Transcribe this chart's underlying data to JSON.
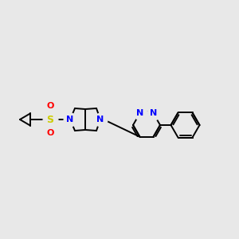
{
  "background_color": "#e8e8e8",
  "bond_color": "#000000",
  "bond_width": 1.4,
  "atom_colors": {
    "N": "#0000ff",
    "S": "#cccc00",
    "O": "#ff0000",
    "C": "#000000"
  },
  "figsize": [
    3.0,
    3.0
  ],
  "dpi": 100,
  "scale": 1.0
}
